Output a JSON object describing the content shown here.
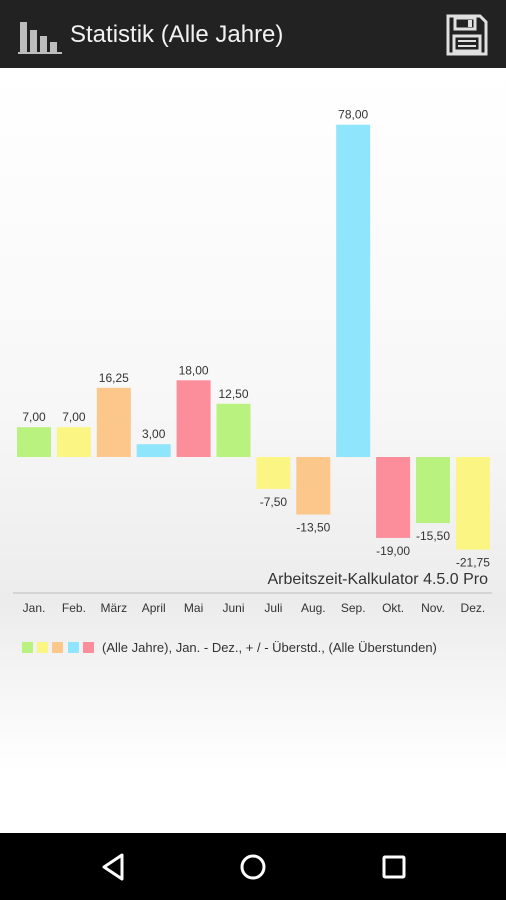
{
  "header": {
    "title": "Statistik (Alle Jahre)",
    "app_icon": "bar-chart-icon",
    "save_icon": "floppy-disk-icon"
  },
  "chart_data": {
    "type": "bar",
    "categories": [
      "Jan.",
      "Feb.",
      "März",
      "April",
      "Mai",
      "Juni",
      "Juli",
      "Aug.",
      "Sep.",
      "Okt.",
      "Nov.",
      "Dez."
    ],
    "values": [
      7.0,
      7.0,
      16.25,
      3.0,
      18.0,
      12.5,
      -7.5,
      -13.5,
      78.0,
      -19.0,
      -15.5,
      -21.75
    ],
    "value_labels": [
      "7,00",
      "7,00",
      "16,25",
      "3,00",
      "18,00",
      "12,50",
      "-7,50",
      "-13,50",
      "78,00",
      "-19,00",
      "-15,50",
      "-21,75"
    ],
    "palette": [
      "#b9f27f",
      "#fbf584",
      "#fcc78b",
      "#8fe5fb",
      "#fc8d9b"
    ],
    "ylim": [
      -21.75,
      78
    ],
    "title": "",
    "xlabel": "",
    "ylabel": "",
    "grid": false
  },
  "watermark": "Arbeitszeit-Kalkulator 4.5.0 Pro",
  "legend": {
    "text": "(Alle Jahre), Jan. - Dez., + / - Überstd., (Alle Überstunden)",
    "colors": [
      "#b9f27f",
      "#fbf584",
      "#fcc78b",
      "#8fe5fb",
      "#fc8d9b"
    ]
  },
  "navbar": {
    "back_icon": "back-icon",
    "home_icon": "home-icon",
    "recents_icon": "recents-icon"
  }
}
